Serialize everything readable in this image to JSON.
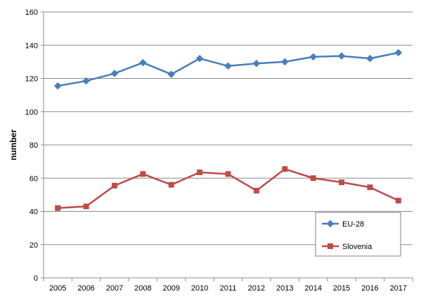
{
  "chart_data": {
    "type": "line",
    "title": "",
    "xlabel": "",
    "ylabel": "number",
    "ylim": [
      0,
      160
    ],
    "yticks": [
      0,
      20,
      40,
      60,
      80,
      100,
      120,
      140,
      160
    ],
    "grid": true,
    "legend_position": "bottom-right",
    "categories": [
      "2005",
      "2006",
      "2007",
      "2008",
      "2009",
      "2010",
      "2011",
      "2012",
      "2013",
      "2014",
      "2015",
      "2016",
      "2017"
    ],
    "series": [
      {
        "name": "EU-28",
        "color": "#4A7EBB",
        "marker": "diamond",
        "values": [
          115.5,
          118.5,
          123,
          129.5,
          122.5,
          132,
          127.5,
          129,
          130,
          133,
          133.5,
          132,
          135.5
        ]
      },
      {
        "name": "Slovenia",
        "color": "#BE4B48",
        "marker": "square",
        "values": [
          42,
          43,
          55.5,
          62.5,
          56,
          63.5,
          62.5,
          52.5,
          65.5,
          60,
          57.5,
          54.5,
          46.5
        ]
      }
    ]
  }
}
